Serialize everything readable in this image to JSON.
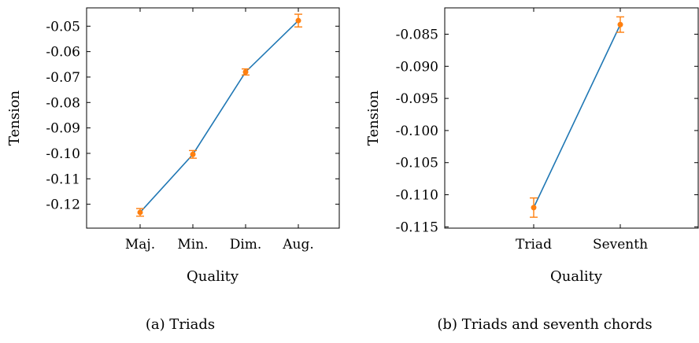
{
  "chart_data": [
    {
      "type": "line",
      "caption": "(a) Triads",
      "xlabel": "Quality",
      "ylabel": "Tension",
      "categories": [
        "Maj.",
        "Min.",
        "Dim.",
        "Aug."
      ],
      "ylim": [
        -0.1294,
        -0.0428
      ],
      "yticks": [
        -0.12,
        -0.11,
        -0.1,
        -0.09,
        -0.08,
        -0.07,
        -0.06,
        -0.05
      ],
      "ytick_labels": [
        "-0.12",
        "-0.11",
        "-0.10",
        "-0.09",
        "-0.08",
        "-0.07",
        "-0.06",
        "-0.05"
      ],
      "series": [
        {
          "values": [
            -0.1232,
            -0.1004,
            -0.068,
            -0.0478
          ],
          "error": [
            0.0015,
            0.0015,
            0.0012,
            0.0025
          ]
        }
      ],
      "grid": false,
      "line_color": "#1f77b4",
      "marker_color": "#ff7f0e"
    },
    {
      "type": "line",
      "caption": "(b) Triads and seventh chords",
      "xlabel": "Quality",
      "ylabel": "Tension",
      "categories": [
        "Triad",
        "Seventh"
      ],
      "ylim": [
        -0.1152,
        -0.0809
      ],
      "yticks": [
        -0.115,
        -0.11,
        -0.105,
        -0.1,
        -0.095,
        -0.09,
        -0.085
      ],
      "ytick_labels": [
        "-0.115",
        "-0.110",
        "-0.105",
        "-0.100",
        "-0.095",
        "-0.090",
        "-0.085"
      ],
      "series": [
        {
          "values": [
            -0.112,
            -0.0835
          ],
          "error": [
            0.0015,
            0.0012
          ]
        }
      ],
      "grid": false,
      "line_color": "#1f77b4",
      "marker_color": "#ff7f0e"
    }
  ]
}
